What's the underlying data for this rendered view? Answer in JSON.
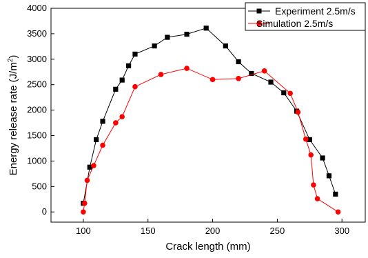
{
  "chart_data": {
    "type": "line",
    "xlabel": "Crack length (mm)",
    "ylabel": {
      "main": "Energy release rate (J/m",
      "sup": "2",
      "close": ")"
    },
    "xlim": [
      75,
      318
    ],
    "ylim": [
      -200,
      4000
    ],
    "xticks": [
      100,
      150,
      200,
      250,
      300
    ],
    "yticks": [
      0,
      500,
      1000,
      1500,
      2000,
      2500,
      3000,
      3500,
      4000
    ],
    "legend_position": "top-right",
    "series": [
      {
        "name": "Experiment 2.5m/s",
        "color": "#000000",
        "marker": "square",
        "x": [
          100,
          105,
          110,
          115,
          125,
          130,
          135,
          140,
          155,
          165,
          180,
          195,
          210,
          220,
          230,
          245,
          255,
          265,
          275,
          285,
          290,
          295
        ],
        "y": [
          170,
          880,
          1420,
          1780,
          2410,
          2590,
          2870,
          3100,
          3260,
          3430,
          3490,
          3610,
          3260,
          2950,
          2720,
          2550,
          2340,
          1980,
          1420,
          1060,
          710,
          350
        ]
      },
      {
        "name": "Simulation 2.5m/s",
        "color": "#ff0000",
        "marker": "circle",
        "x": [
          100,
          101,
          103,
          108,
          115,
          125,
          130,
          140,
          160,
          180,
          200,
          220,
          240,
          260,
          266,
          272,
          276,
          278,
          281,
          297
        ],
        "y": [
          0,
          170,
          620,
          910,
          1310,
          1750,
          1870,
          2460,
          2700,
          2820,
          2600,
          2620,
          2770,
          2330,
          1960,
          1430,
          1120,
          530,
          260,
          0
        ]
      }
    ]
  }
}
